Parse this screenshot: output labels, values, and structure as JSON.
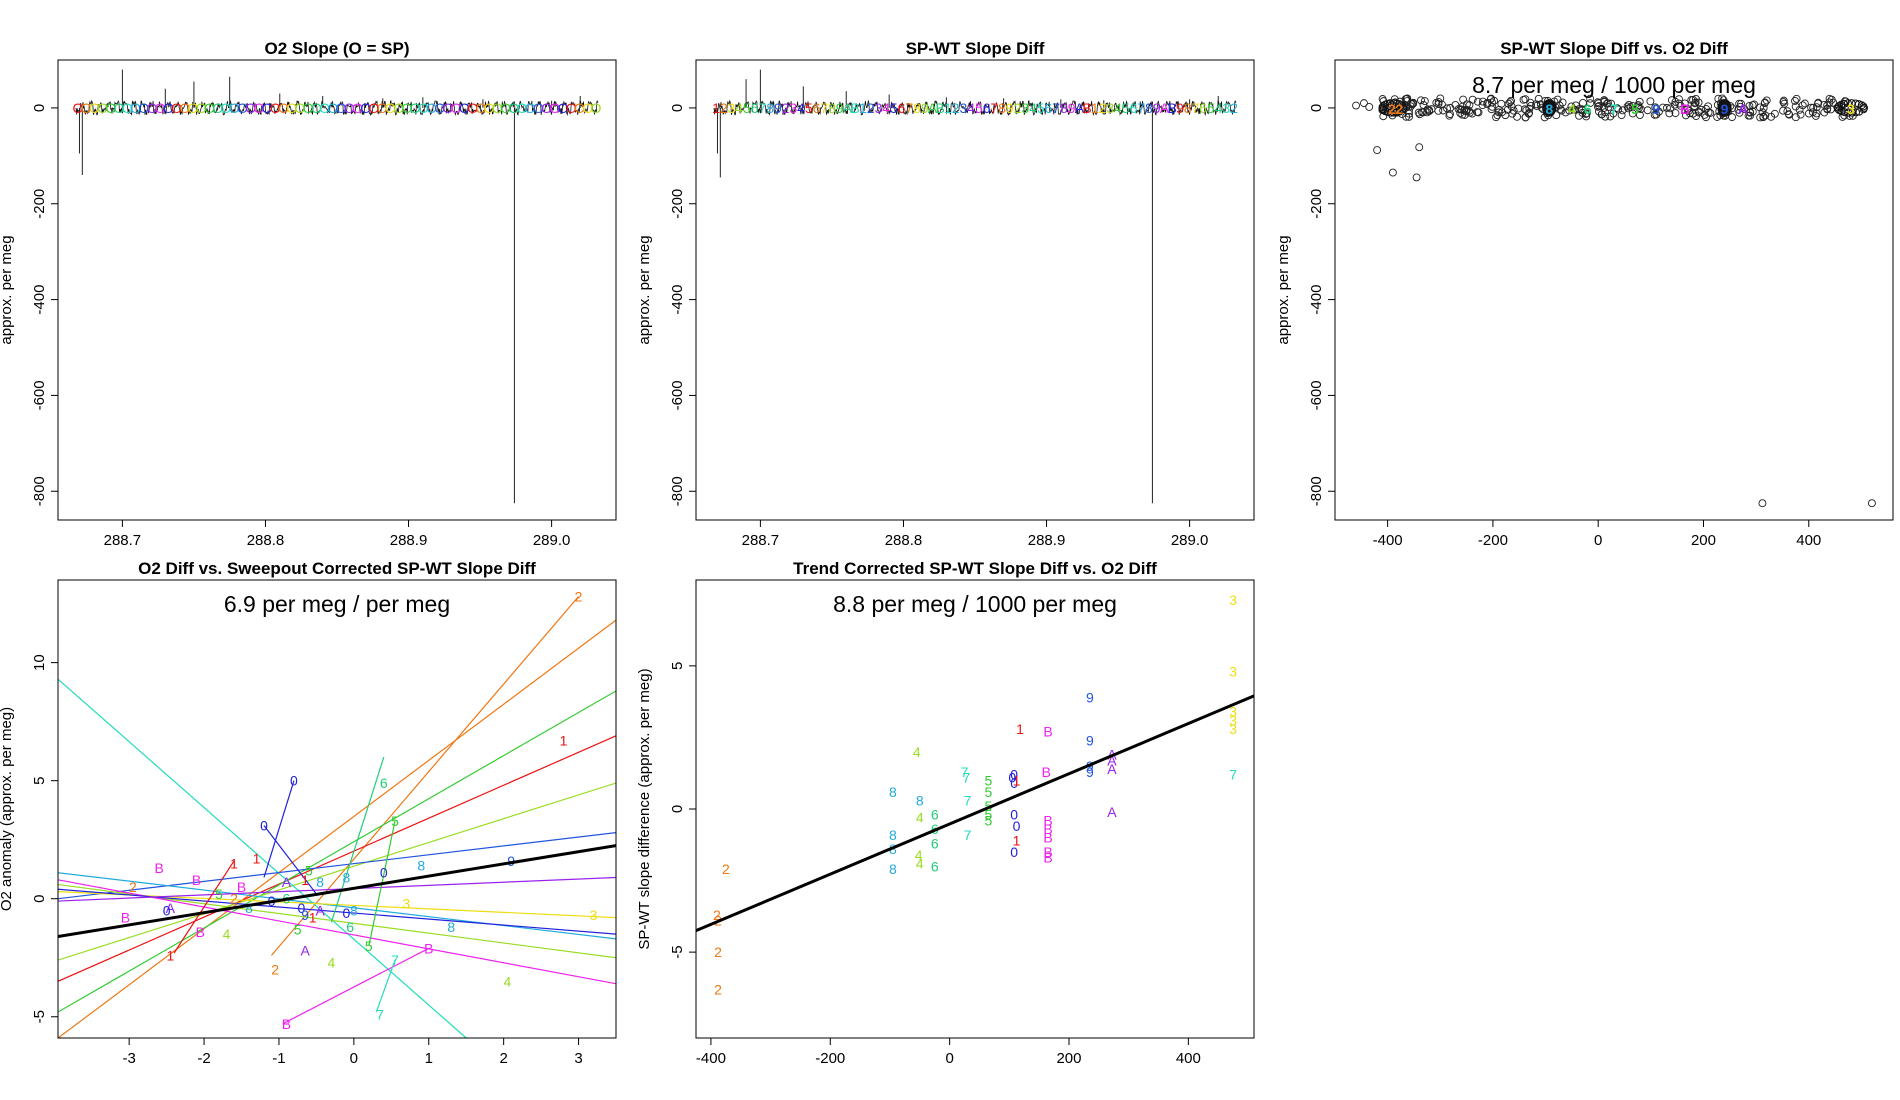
{
  "colors": {
    "0": "#2222dd",
    "1": "#ee1111",
    "2": "#ee7711",
    "3": "#eedd11",
    "4": "#99dd22",
    "5": "#33cc33",
    "6": "#22cc77",
    "7": "#22ddbb",
    "8": "#22aadd",
    "9": "#2255dd",
    "A": "#9922ee",
    "B": "#ee22ee",
    "fit": "#000000",
    "axis": "#000000",
    "point": "#333333"
  },
  "chart_data": [
    {
      "id": "p1",
      "type": "line",
      "title": "O2 Slope (O = SP)",
      "xlabel": "",
      "ylabel": "approx. per meg",
      "xlim": [
        288.655,
        289.045
      ],
      "ylim": [
        -860,
        100
      ],
      "xticks": [
        "288.7",
        "288.8",
        "288.9",
        "289.0"
      ],
      "yticks": [
        "0",
        "-200",
        "-400",
        "-600",
        "-800"
      ],
      "spikes": [
        [
          288.67,
          -95
        ],
        [
          288.672,
          -140
        ],
        [
          288.7,
          80
        ],
        [
          288.73,
          40
        ],
        [
          288.75,
          55
        ],
        [
          288.775,
          65
        ],
        [
          288.81,
          30
        ],
        [
          288.84,
          25
        ],
        [
          288.882,
          20
        ],
        [
          288.91,
          22
        ],
        [
          288.952,
          18
        ],
        [
          288.974,
          -825
        ],
        [
          289.0,
          15
        ],
        [
          289.02,
          25
        ]
      ],
      "band_labels": "OOOOOOOOOOOOOOOOOOOOOOOOOOOOOOOOOOOOOOOOOOOOOOOOOOOOOOOOOOOOOOOO"
    },
    {
      "id": "p2",
      "type": "line",
      "title": "SP-WT Slope Diff",
      "xlabel": "",
      "ylabel": "approx. per meg",
      "xlim": [
        288.655,
        289.045
      ],
      "ylim": [
        -860,
        100
      ],
      "xticks": [
        "288.7",
        "288.8",
        "288.9",
        "289.0"
      ],
      "yticks": [
        "0",
        "-200",
        "-400",
        "-600",
        "-800"
      ],
      "spikes": [
        [
          288.67,
          -95
        ],
        [
          288.672,
          -145
        ],
        [
          288.69,
          60
        ],
        [
          288.7,
          80
        ],
        [
          288.73,
          45
        ],
        [
          288.76,
          35
        ],
        [
          288.79,
          28
        ],
        [
          288.83,
          22
        ],
        [
          288.87,
          20
        ],
        [
          288.91,
          18
        ],
        [
          288.94,
          16
        ],
        [
          288.974,
          -825
        ],
        [
          289.0,
          18
        ],
        [
          289.02,
          25
        ]
      ],
      "band_labels": "12345678923456789AB123456789AB12345678923456789AB123456789AB98765432"
    },
    {
      "id": "p3",
      "type": "scatter",
      "title": "SP-WT Slope Diff vs. O2 Diff",
      "xlabel": "",
      "ylabel": "approx. per meg",
      "xlim": [
        -500,
        560
      ],
      "ylim": [
        -860,
        100
      ],
      "xticks": [
        "-400",
        "-200",
        "0",
        "200",
        "400"
      ],
      "yticks": [
        "0",
        "-200",
        "-400",
        "-600",
        "-800"
      ],
      "annotation": "8.7 per meg / 1000 per meg",
      "outliers": [
        [
          -460,
          5
        ],
        [
          -445,
          10
        ],
        [
          -435,
          2
        ],
        [
          -420,
          -88
        ],
        [
          -390,
          -135
        ],
        [
          -340,
          -82
        ],
        [
          -345,
          -145
        ],
        [
          312,
          -825
        ],
        [
          520,
          -825
        ]
      ],
      "labels": [
        {
          "t": "2",
          "x": -392,
          "y": 0
        },
        {
          "t": "2",
          "x": -378,
          "y": 0
        },
        {
          "t": "8",
          "x": -93,
          "y": 0
        },
        {
          "t": "4",
          "x": -50,
          "y": 0
        },
        {
          "t": "6",
          "x": -20,
          "y": 0
        },
        {
          "t": "7",
          "x": 30,
          "y": 0
        },
        {
          "t": "5",
          "x": 70,
          "y": 0
        },
        {
          "t": "9",
          "x": 110,
          "y": 0
        },
        {
          "t": "B",
          "x": 165,
          "y": 0
        },
        {
          "t": "9",
          "x": 240,
          "y": 0
        },
        {
          "t": "A",
          "x": 275,
          "y": 0
        },
        {
          "t": "3",
          "x": 480,
          "y": 0
        }
      ]
    },
    {
      "id": "p4",
      "type": "scatter",
      "title": "O2 Diff vs. Sweepout Corrected SP-WT Slope Diff",
      "xlabel": "",
      "ylabel": "O2 anomaly (approx. per meg)",
      "xlim": [
        -3.95,
        3.5
      ],
      "ylim": [
        -5.9,
        13.5
      ],
      "xticks": [
        "-3",
        "-2",
        "-1",
        "0",
        "1",
        "2",
        "3"
      ],
      "yticks": [
        "-5",
        "0",
        "5",
        "10"
      ],
      "annotation": "6.9 per meg / per meg",
      "fit": [
        [
          -3.95,
          -1.6
        ],
        [
          3.5,
          2.25
        ]
      ],
      "lines": [
        {
          "c": "2",
          "a": [
            -3.95,
            -5.9
          ],
          "b": [
            3.5,
            11.8
          ]
        },
        {
          "c": "2",
          "a": [
            -1.1,
            -2.4
          ],
          "b": [
            3.0,
            12.8
          ]
        },
        {
          "c": "1",
          "a": [
            -3.95,
            -3.5
          ],
          "b": [
            3.5,
            6.9
          ]
        },
        {
          "c": "5",
          "a": [
            -3.95,
            -4.8
          ],
          "b": [
            3.5,
            8.8
          ]
        },
        {
          "c": "4",
          "a": [
            -3.95,
            -2.6
          ],
          "b": [
            3.5,
            4.9
          ]
        },
        {
          "c": "7",
          "a": [
            -3.95,
            9.3
          ],
          "b": [
            1.5,
            -5.9
          ]
        },
        {
          "c": "9",
          "a": [
            -3.95,
            0.0
          ],
          "b": [
            3.5,
            2.8
          ]
        },
        {
          "c": "8",
          "a": [
            -3.95,
            1.1
          ],
          "b": [
            3.5,
            -1.7
          ]
        },
        {
          "c": "3",
          "a": [
            -3.95,
            0.3
          ],
          "b": [
            3.5,
            -0.8
          ]
        },
        {
          "c": "4",
          "a": [
            -3.95,
            0.6
          ],
          "b": [
            3.5,
            -2.5
          ]
        },
        {
          "c": "B",
          "a": [
            -3.95,
            0.8
          ],
          "b": [
            3.5,
            -3.6
          ]
        },
        {
          "c": "0",
          "a": [
            -3.95,
            0.4
          ],
          "b": [
            3.5,
            -1.5
          ]
        },
        {
          "c": "A",
          "a": [
            -3.95,
            -0.1
          ],
          "b": [
            3.5,
            0.9
          ]
        },
        {
          "c": "0",
          "a": [
            -1.2,
            0.9
          ],
          "b": [
            -0.8,
            5.0
          ]
        },
        {
          "c": "0",
          "a": [
            -1.2,
            3.1
          ],
          "b": [
            -0.5,
            0.2
          ]
        },
        {
          "c": "6",
          "a": [
            -0.3,
            -1.0
          ],
          "b": [
            0.4,
            6.0
          ]
        },
        {
          "c": "5",
          "a": [
            0.2,
            -2.0
          ],
          "b": [
            0.55,
            3.3
          ]
        },
        {
          "c": "B",
          "a": [
            -0.95,
            -5.3
          ],
          "b": [
            1.0,
            -2.1
          ]
        },
        {
          "c": "7",
          "a": [
            0.3,
            -4.8
          ],
          "b": [
            0.55,
            -2.6
          ]
        },
        {
          "c": "1",
          "a": [
            -2.4,
            -2.3
          ],
          "b": [
            -1.6,
            1.6
          ]
        }
      ],
      "labels": [
        {
          "t": "2",
          "x": 3.0,
          "y": 12.8
        },
        {
          "t": "1",
          "x": 2.8,
          "y": 6.7
        },
        {
          "t": "6",
          "x": 0.4,
          "y": 4.9
        },
        {
          "t": "0",
          "x": -0.8,
          "y": 5.0
        },
        {
          "t": "0",
          "x": -1.2,
          "y": 3.1
        },
        {
          "t": "5",
          "x": 0.55,
          "y": 3.3
        },
        {
          "t": "B",
          "x": -2.6,
          "y": 1.3
        },
        {
          "t": "1",
          "x": -1.6,
          "y": 1.5
        },
        {
          "t": "1",
          "x": -1.3,
          "y": 1.7
        },
        {
          "t": "B",
          "x": -2.1,
          "y": 0.8
        },
        {
          "t": "B",
          "x": -1.5,
          "y": 0.5
        },
        {
          "t": "2",
          "x": -2.95,
          "y": 0.5
        },
        {
          "t": "A",
          "x": -0.9,
          "y": 0.7
        },
        {
          "t": "5",
          "x": -0.6,
          "y": 1.2
        },
        {
          "t": "9",
          "x": 2.1,
          "y": 1.6
        },
        {
          "t": "8",
          "x": 0.9,
          "y": 1.4
        },
        {
          "t": "8",
          "x": -0.45,
          "y": 0.7
        },
        {
          "t": "8",
          "x": -0.1,
          "y": 0.9
        },
        {
          "t": "0",
          "x": 0.4,
          "y": 1.1
        },
        {
          "t": "1",
          "x": -0.65,
          "y": 0.8
        },
        {
          "t": "5",
          "x": -1.8,
          "y": 0.2
        },
        {
          "t": "2",
          "x": -1.6,
          "y": 0.0
        },
        {
          "t": "0",
          "x": -1.1,
          "y": -0.1
        },
        {
          "t": "6",
          "x": -0.9,
          "y": 0.0
        },
        {
          "t": "3",
          "x": 0.7,
          "y": -0.2
        },
        {
          "t": "A",
          "x": -2.45,
          "y": -0.4
        },
        {
          "t": "0",
          "x": -2.5,
          "y": -0.5
        },
        {
          "t": "B",
          "x": -3.05,
          "y": -0.8
        },
        {
          "t": "8",
          "x": -1.4,
          "y": -0.4
        },
        {
          "t": "0",
          "x": -0.7,
          "y": -0.4
        },
        {
          "t": "9",
          "x": -0.65,
          "y": -0.7
        },
        {
          "t": "A",
          "x": -0.45,
          "y": -0.5
        },
        {
          "t": "1",
          "x": -0.55,
          "y": -0.8
        },
        {
          "t": "0",
          "x": -0.1,
          "y": -0.6
        },
        {
          "t": "8",
          "x": 0.0,
          "y": -0.5
        },
        {
          "t": "3",
          "x": 3.2,
          "y": -0.7
        },
        {
          "t": "B",
          "x": -2.05,
          "y": -1.4
        },
        {
          "t": "4",
          "x": -1.7,
          "y": -1.5
        },
        {
          "t": "5",
          "x": -0.75,
          "y": -1.3
        },
        {
          "t": "6",
          "x": -0.05,
          "y": -1.2
        },
        {
          "t": "8",
          "x": 1.3,
          "y": -1.2
        },
        {
          "t": "1",
          "x": -2.45,
          "y": -2.4
        },
        {
          "t": "5",
          "x": 0.2,
          "y": -2.0
        },
        {
          "t": "2",
          "x": -1.05,
          "y": -3.0
        },
        {
          "t": "A",
          "x": -0.65,
          "y": -2.2
        },
        {
          "t": "4",
          "x": -0.3,
          "y": -2.7
        },
        {
          "t": "7",
          "x": 0.55,
          "y": -2.6
        },
        {
          "t": "B",
          "x": 1.0,
          "y": -2.1
        },
        {
          "t": "4",
          "x": 2.05,
          "y": -3.5
        },
        {
          "t": "7",
          "x": 0.35,
          "y": -4.9
        },
        {
          "t": "B",
          "x": -0.9,
          "y": -5.3
        }
      ]
    },
    {
      "id": "p5",
      "type": "scatter",
      "title": "Trend Corrected SP-WT Slope Diff vs. O2 Diff",
      "xlabel": "",
      "ylabel": "SP-WT slope difference (approx. per meg)",
      "xlim": [
        -425,
        510
      ],
      "ylim": [
        -8,
        8
      ],
      "xticks": [
        "-400",
        "-200",
        "0",
        "200",
        "400"
      ],
      "yticks": [
        "-5",
        "0",
        "5"
      ],
      "annotation": "8.8 per meg / 1000 per meg",
      "fit": [
        [
          -425,
          -4.25
        ],
        [
          510,
          3.95
        ]
      ],
      "labels": [
        {
          "t": "2",
          "x": -375,
          "y": -2.1
        },
        {
          "t": "2",
          "x": -390,
          "y": -3.7
        },
        {
          "t": "2",
          "x": -388,
          "y": -3.9
        },
        {
          "t": "2",
          "x": -388,
          "y": -5.0
        },
        {
          "t": "2",
          "x": -388,
          "y": -6.3
        },
        {
          "t": "3",
          "x": 475,
          "y": 7.3
        },
        {
          "t": "3",
          "x": 475,
          "y": 4.8
        },
        {
          "t": "3",
          "x": 475,
          "y": 3.4
        },
        {
          "t": "3",
          "x": 475,
          "y": 3.1
        },
        {
          "t": "3",
          "x": 475,
          "y": 2.8
        },
        {
          "t": "7",
          "x": 475,
          "y": 1.2
        },
        {
          "t": "9",
          "x": 235,
          "y": 3.9
        },
        {
          "t": "9",
          "x": 235,
          "y": 2.4
        },
        {
          "t": "9",
          "x": 235,
          "y": 1.5
        },
        {
          "t": "9",
          "x": 235,
          "y": 1.3
        },
        {
          "t": "A",
          "x": 272,
          "y": 1.9
        },
        {
          "t": "A",
          "x": 272,
          "y": 1.7
        },
        {
          "t": "A",
          "x": 272,
          "y": 1.4
        },
        {
          "t": "A",
          "x": 272,
          "y": -0.1
        },
        {
          "t": "1",
          "x": 118,
          "y": 2.8
        },
        {
          "t": "B",
          "x": 165,
          "y": 2.7
        },
        {
          "t": "B",
          "x": 162,
          "y": 1.3
        },
        {
          "t": "B",
          "x": 165,
          "y": -0.4
        },
        {
          "t": "B",
          "x": 165,
          "y": -0.7
        },
        {
          "t": "B",
          "x": 165,
          "y": -1.0
        },
        {
          "t": "B",
          "x": 165,
          "y": -1.5
        },
        {
          "t": "B",
          "x": 165,
          "y": -1.7
        },
        {
          "t": "0",
          "x": 108,
          "y": 1.2
        },
        {
          "t": "0",
          "x": 108,
          "y": 0.9
        },
        {
          "t": "0",
          "x": 108,
          "y": -0.2
        },
        {
          "t": "0",
          "x": 112,
          "y": -0.6
        },
        {
          "t": "0",
          "x": 108,
          "y": -1.5
        },
        {
          "t": "1",
          "x": 112,
          "y": 1.0
        },
        {
          "t": "1",
          "x": 112,
          "y": -1.1
        },
        {
          "t": "4",
          "x": -55,
          "y": 2.0
        },
        {
          "t": "4",
          "x": -50,
          "y": -0.3
        },
        {
          "t": "4",
          "x": -52,
          "y": -1.6
        },
        {
          "t": "4",
          "x": -50,
          "y": -1.9
        },
        {
          "t": "6",
          "x": -25,
          "y": -0.2
        },
        {
          "t": "6",
          "x": -25,
          "y": -0.7
        },
        {
          "t": "6",
          "x": -25,
          "y": -1.2
        },
        {
          "t": "6",
          "x": -25,
          "y": -2.0
        },
        {
          "t": "8",
          "x": -95,
          "y": 0.6
        },
        {
          "t": "8",
          "x": -95,
          "y": -0.9
        },
        {
          "t": "8",
          "x": -95,
          "y": -1.4
        },
        {
          "t": "8",
          "x": -95,
          "y": -2.1
        },
        {
          "t": "8",
          "x": -50,
          "y": 0.3
        },
        {
          "t": "7",
          "x": 25,
          "y": 1.3
        },
        {
          "t": "7",
          "x": 28,
          "y": 1.1
        },
        {
          "t": "7",
          "x": 30,
          "y": 0.3
        },
        {
          "t": "7",
          "x": 30,
          "y": -0.9
        },
        {
          "t": "5",
          "x": 65,
          "y": 1.0
        },
        {
          "t": "5",
          "x": 65,
          "y": 0.6
        },
        {
          "t": "5",
          "x": 65,
          "y": 0.1
        },
        {
          "t": "5",
          "x": 65,
          "y": -0.2
        },
        {
          "t": "5",
          "x": 65,
          "y": -0.4
        },
        {
          "t": "0",
          "x": 105,
          "y": 1.1
        }
      ]
    }
  ]
}
